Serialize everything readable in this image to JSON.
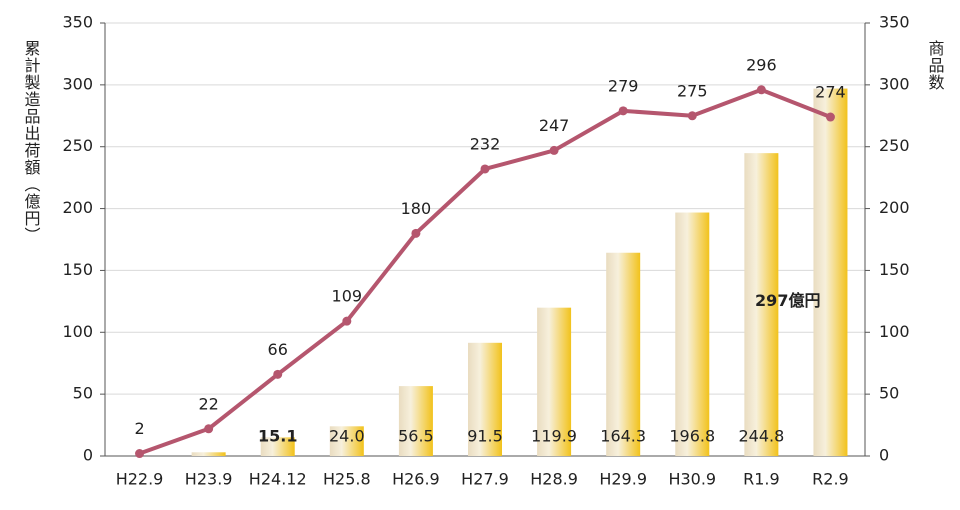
{
  "chart_data": {
    "type": "bar-line",
    "y_axis_label": "累計製造品出荷額（億円）",
    "y2_axis_label": "商品数",
    "categories": [
      "H22.9",
      "H23.9",
      "H24.12",
      "H25.8",
      "H26.9",
      "H27.9",
      "H28.9",
      "H29.9",
      "H30.9",
      "R1.9",
      "R2.9"
    ],
    "series": [
      {
        "name": "累計製造品出荷額",
        "type": "bar",
        "color": "#f2c21b",
        "values": [
          0,
          3,
          15.1,
          24.0,
          56.5,
          91.5,
          119.9,
          164.3,
          196.8,
          244.8,
          297
        ],
        "value_labels": [
          null,
          null,
          "15.1",
          "24.0",
          "56.5",
          "91.5",
          "119.9",
          "164.3",
          "196.8",
          "244.8",
          "297億円"
        ],
        "value_label_colors": [
          "#222",
          "#222",
          "#e00000",
          "#222",
          "#222",
          "#222",
          "#222",
          "#222",
          "#222",
          "#222",
          "#e00000"
        ]
      },
      {
        "name": "商品数",
        "type": "line",
        "axis": "y2",
        "color": "#b5566e",
        "values": [
          2,
          22,
          66,
          109,
          180,
          232,
          247,
          279,
          275,
          296,
          274
        ]
      }
    ],
    "ylim": [
      0,
      350
    ],
    "yticks": [
      0,
      50,
      100,
      150,
      200,
      250,
      300,
      350
    ],
    "y2lim": [
      0,
      350
    ],
    "y2ticks": [
      0,
      50,
      100,
      150,
      200,
      250,
      300,
      350
    ],
    "grid": true
  }
}
